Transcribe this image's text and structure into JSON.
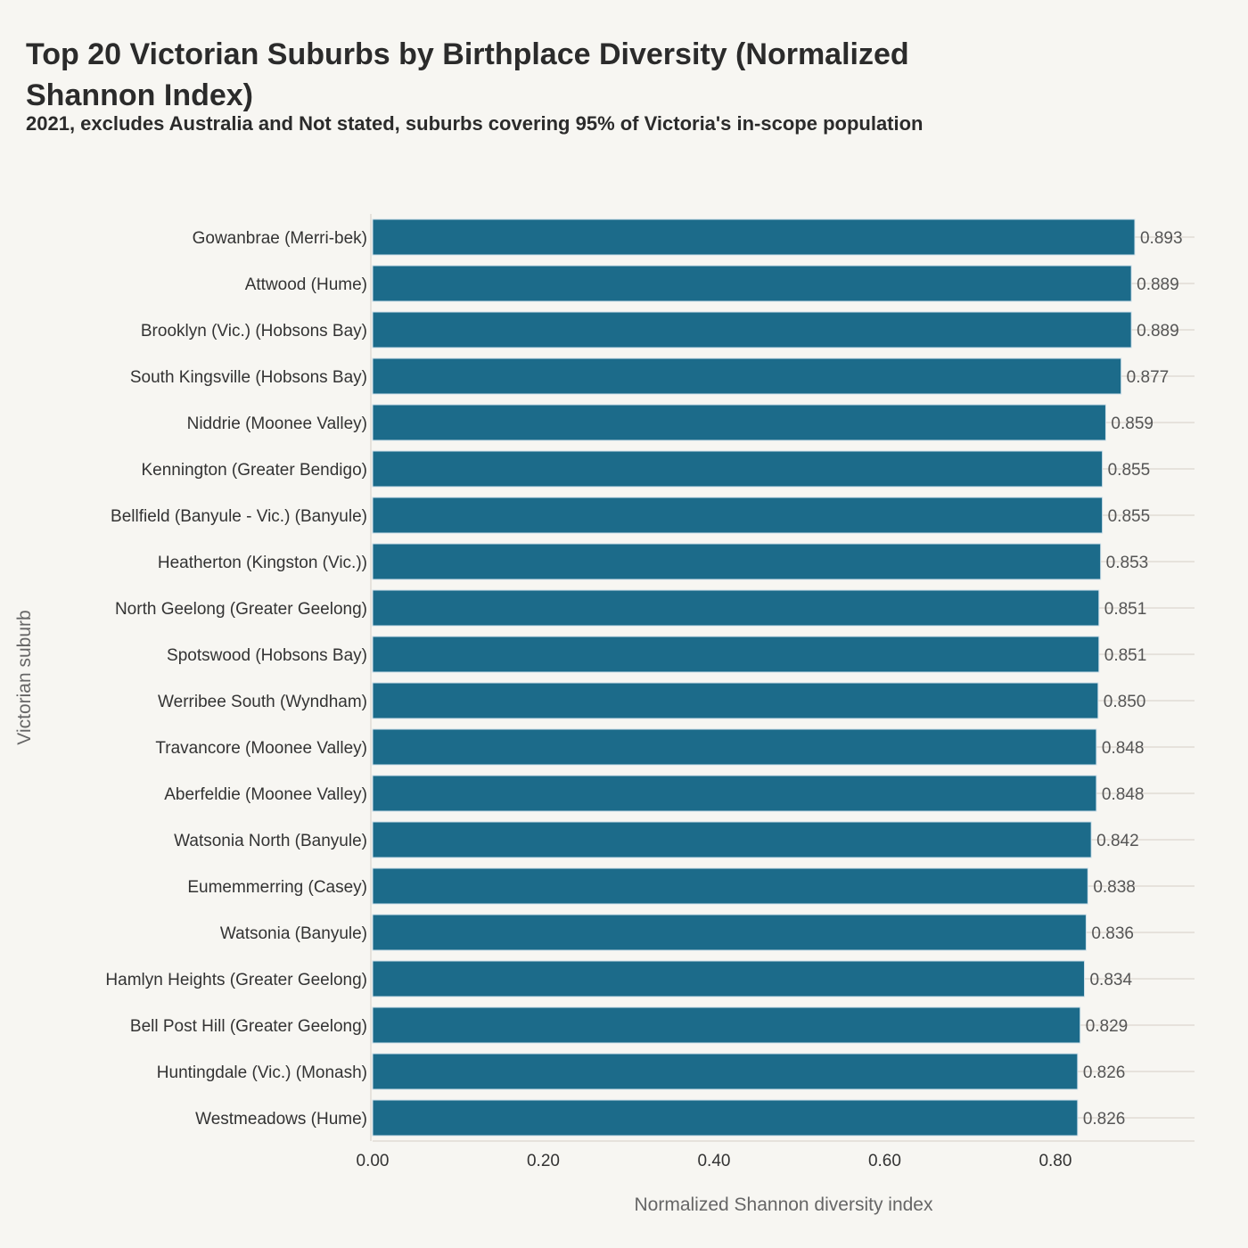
{
  "chart_data": {
    "type": "bar",
    "orientation": "horizontal",
    "title": "Top 20 Victorian Suburbs by Birthplace Diversity (Normalized Shannon Index)",
    "subtitle": "2021, excludes Australia and Not stated, suburbs covering 95% of Victoria's in-scope population",
    "xlabel": "Normalized Shannon diversity index",
    "ylabel": "Victorian suburb",
    "xlim": [
      0,
      0.963
    ],
    "xticks": [
      "0.00",
      "0.20",
      "0.40",
      "0.60",
      "0.80"
    ],
    "grid": "horizontal",
    "bar_color": "#1c6b8a",
    "categories": [
      "Gowanbrae (Merri-bek)",
      "Attwood (Hume)",
      "Brooklyn (Vic.) (Hobsons Bay)",
      "South Kingsville (Hobsons Bay)",
      "Niddrie (Moonee Valley)",
      "Kennington (Greater Bendigo)",
      "Bellfield (Banyule - Vic.) (Banyule)",
      "Heatherton (Kingston (Vic.))",
      "North Geelong (Greater Geelong)",
      "Spotswood (Hobsons Bay)",
      "Werribee South (Wyndham)",
      "Travancore (Moonee Valley)",
      "Aberfeldie (Moonee Valley)",
      "Watsonia North (Banyule)",
      "Eumemmerring (Casey)",
      "Watsonia (Banyule)",
      "Hamlyn Heights (Greater Geelong)",
      "Bell Post Hill (Greater Geelong)",
      "Huntingdale (Vic.) (Monash)",
      "Westmeadows (Hume)"
    ],
    "values": [
      0.893,
      0.889,
      0.889,
      0.877,
      0.859,
      0.855,
      0.855,
      0.853,
      0.851,
      0.851,
      0.85,
      0.848,
      0.848,
      0.842,
      0.838,
      0.836,
      0.834,
      0.829,
      0.826,
      0.826
    ]
  }
}
